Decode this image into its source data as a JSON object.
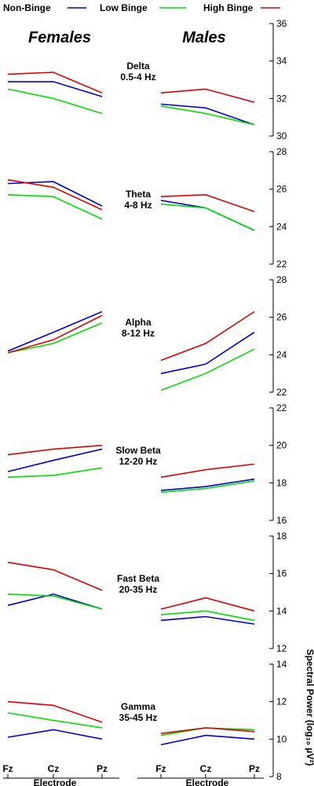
{
  "legend": [
    {
      "label": "Non-Binge",
      "color": "#0000cc"
    },
    {
      "label": "Low Binge",
      "color": "#00dd00"
    },
    {
      "label": "High Binge",
      "color": "#dd0000"
    }
  ],
  "headers": {
    "females": "Females",
    "males": "Males"
  },
  "ylabel": "Spectral Power (log₁₀ µV²)",
  "xlabel": "Electrode",
  "chart_data": {
    "type": "line",
    "categories": [
      "Fz",
      "Cz",
      "Pz"
    ],
    "series_keys": [
      "non_binge",
      "low_binge",
      "high_binge"
    ],
    "colors": {
      "non_binge": "#0000cc",
      "low_binge": "#00dd00",
      "high_binge": "#dd0000"
    },
    "bands": [
      {
        "title": [
          "Delta",
          "0.5-4 Hz"
        ],
        "ylim": [
          30,
          36
        ],
        "ticks": [
          30,
          32,
          34,
          36
        ],
        "females": {
          "non_binge": [
            32.9,
            32.9,
            32.1
          ],
          "low_binge": [
            32.5,
            32.0,
            31.2
          ],
          "high_binge": [
            33.3,
            33.4,
            32.3
          ]
        },
        "males": {
          "non_binge": [
            31.7,
            31.5,
            30.6
          ],
          "low_binge": [
            31.6,
            31.2,
            30.6
          ],
          "high_binge": [
            32.3,
            32.5,
            31.8
          ]
        }
      },
      {
        "title": [
          "Theta",
          "4-8 Hz"
        ],
        "ylim": [
          22,
          28
        ],
        "ticks": [
          22,
          24,
          26,
          28
        ],
        "females": {
          "non_binge": [
            26.3,
            26.4,
            25.1
          ],
          "low_binge": [
            25.7,
            25.6,
            24.4
          ],
          "high_binge": [
            26.5,
            26.1,
            24.9
          ]
        },
        "males": {
          "non_binge": [
            25.4,
            25.0,
            23.8
          ],
          "low_binge": [
            25.2,
            25.0,
            23.8
          ],
          "high_binge": [
            25.6,
            25.7,
            24.8
          ]
        }
      },
      {
        "title": [
          "Alpha",
          "8-12 Hz"
        ],
        "ylim": [
          22,
          28
        ],
        "ticks": [
          22,
          24,
          26,
          28
        ],
        "females": {
          "non_binge": [
            24.2,
            25.2,
            26.3
          ],
          "low_binge": [
            24.1,
            24.6,
            25.7
          ],
          "high_binge": [
            24.1,
            24.8,
            26.1
          ]
        },
        "males": {
          "non_binge": [
            23.0,
            23.5,
            25.2
          ],
          "low_binge": [
            22.1,
            23.0,
            24.3
          ],
          "high_binge": [
            23.7,
            24.6,
            26.3
          ]
        }
      },
      {
        "title": [
          "Slow Beta",
          "12-20 Hz"
        ],
        "ylim": [
          16,
          22
        ],
        "ticks": [
          16,
          18,
          20,
          22
        ],
        "females": {
          "non_binge": [
            18.6,
            19.2,
            19.8
          ],
          "low_binge": [
            18.3,
            18.4,
            18.8
          ],
          "high_binge": [
            19.5,
            19.8,
            20.0
          ]
        },
        "males": {
          "non_binge": [
            17.6,
            17.8,
            18.2
          ],
          "low_binge": [
            17.5,
            17.7,
            18.1
          ],
          "high_binge": [
            18.3,
            18.7,
            19.0
          ]
        }
      },
      {
        "title": [
          "Fast Beta",
          "20-35 Hz"
        ],
        "ylim": [
          12,
          18
        ],
        "ticks": [
          12,
          14,
          16,
          18
        ],
        "females": {
          "non_binge": [
            14.3,
            14.9,
            14.1
          ],
          "low_binge": [
            14.9,
            14.8,
            14.1
          ],
          "high_binge": [
            16.6,
            16.2,
            15.1
          ]
        },
        "males": {
          "non_binge": [
            13.5,
            13.7,
            13.3
          ],
          "low_binge": [
            13.8,
            14.0,
            13.5
          ],
          "high_binge": [
            14.1,
            14.7,
            14.0
          ]
        }
      },
      {
        "title": [
          "Gamma",
          "35-45 Hz"
        ],
        "ylim": [
          8,
          14
        ],
        "ticks": [
          8,
          10,
          12,
          14
        ],
        "females": {
          "non_binge": [
            10.1,
            10.5,
            10.0
          ],
          "low_binge": [
            11.4,
            11.0,
            10.6
          ],
          "high_binge": [
            12.0,
            11.8,
            10.9
          ]
        },
        "males": {
          "non_binge": [
            9.7,
            10.2,
            10.0
          ],
          "low_binge": [
            10.2,
            10.6,
            10.5
          ],
          "high_binge": [
            10.3,
            10.6,
            10.4
          ]
        }
      }
    ]
  }
}
